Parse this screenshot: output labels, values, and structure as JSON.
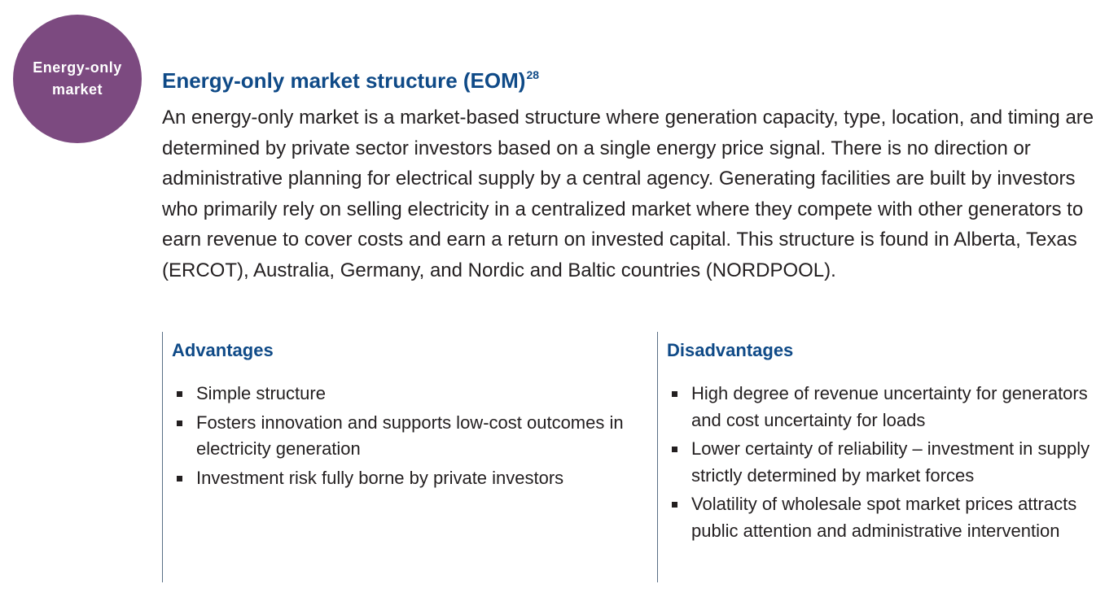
{
  "badge": {
    "label": "Energy-only market",
    "color": "#7c4a80"
  },
  "heading": {
    "title": "Energy-only market structure (EOM)",
    "footnote": "28",
    "color": "#0f4a87"
  },
  "intro": "An energy-only market is a market-based structure where generation capacity, type, location, and timing are determined by private sector investors based on a single energy price signal. There is no direction or administrative planning for electrical supply by a central agency. Generating facilities are built by investors who primarily rely on selling electricity in a centralized market where they compete with other generators to earn revenue to cover costs and earn a return on invested capital. This structure is found in Alberta, Texas (ERCOT), Australia, Germany, and Nordic and Baltic countries (NORDPOOL).",
  "advantages": {
    "title": "Advantages",
    "items": [
      "Simple structure",
      "Fosters innovation and supports low-cost outcomes in electricity generation",
      "Investment risk fully borne by private investors"
    ]
  },
  "disadvantages": {
    "title": "Disadvantages",
    "items": [
      "High degree of revenue uncertainty for generators and cost uncertainty for loads",
      "Lower certainty of reliability – investment in supply strictly determined by market forces",
      "Volatility of wholesale spot market prices attracts public attention and administrative intervention"
    ]
  }
}
